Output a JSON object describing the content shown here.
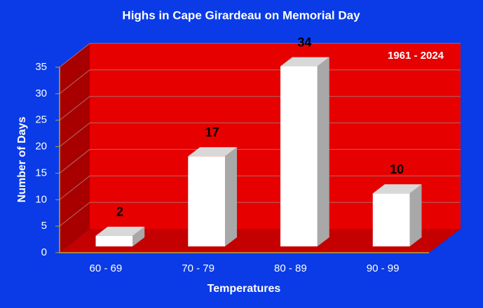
{
  "chart_data": {
    "type": "bar3d",
    "title": "Highs in Cape Girardeau on Memorial Day",
    "annotation": "1961 - 2024",
    "x_label": "Temperatures",
    "y_label": "Number of Days",
    "categories": [
      "60 - 69",
      "70 - 79",
      "80 - 89",
      "90 - 99"
    ],
    "values": [
      2,
      17,
      34,
      10
    ],
    "color": "#ffffff",
    "ylim": [
      0,
      35
    ],
    "yticks": [
      0,
      5,
      10,
      15,
      20,
      25,
      30,
      35
    ],
    "grid": true
  }
}
